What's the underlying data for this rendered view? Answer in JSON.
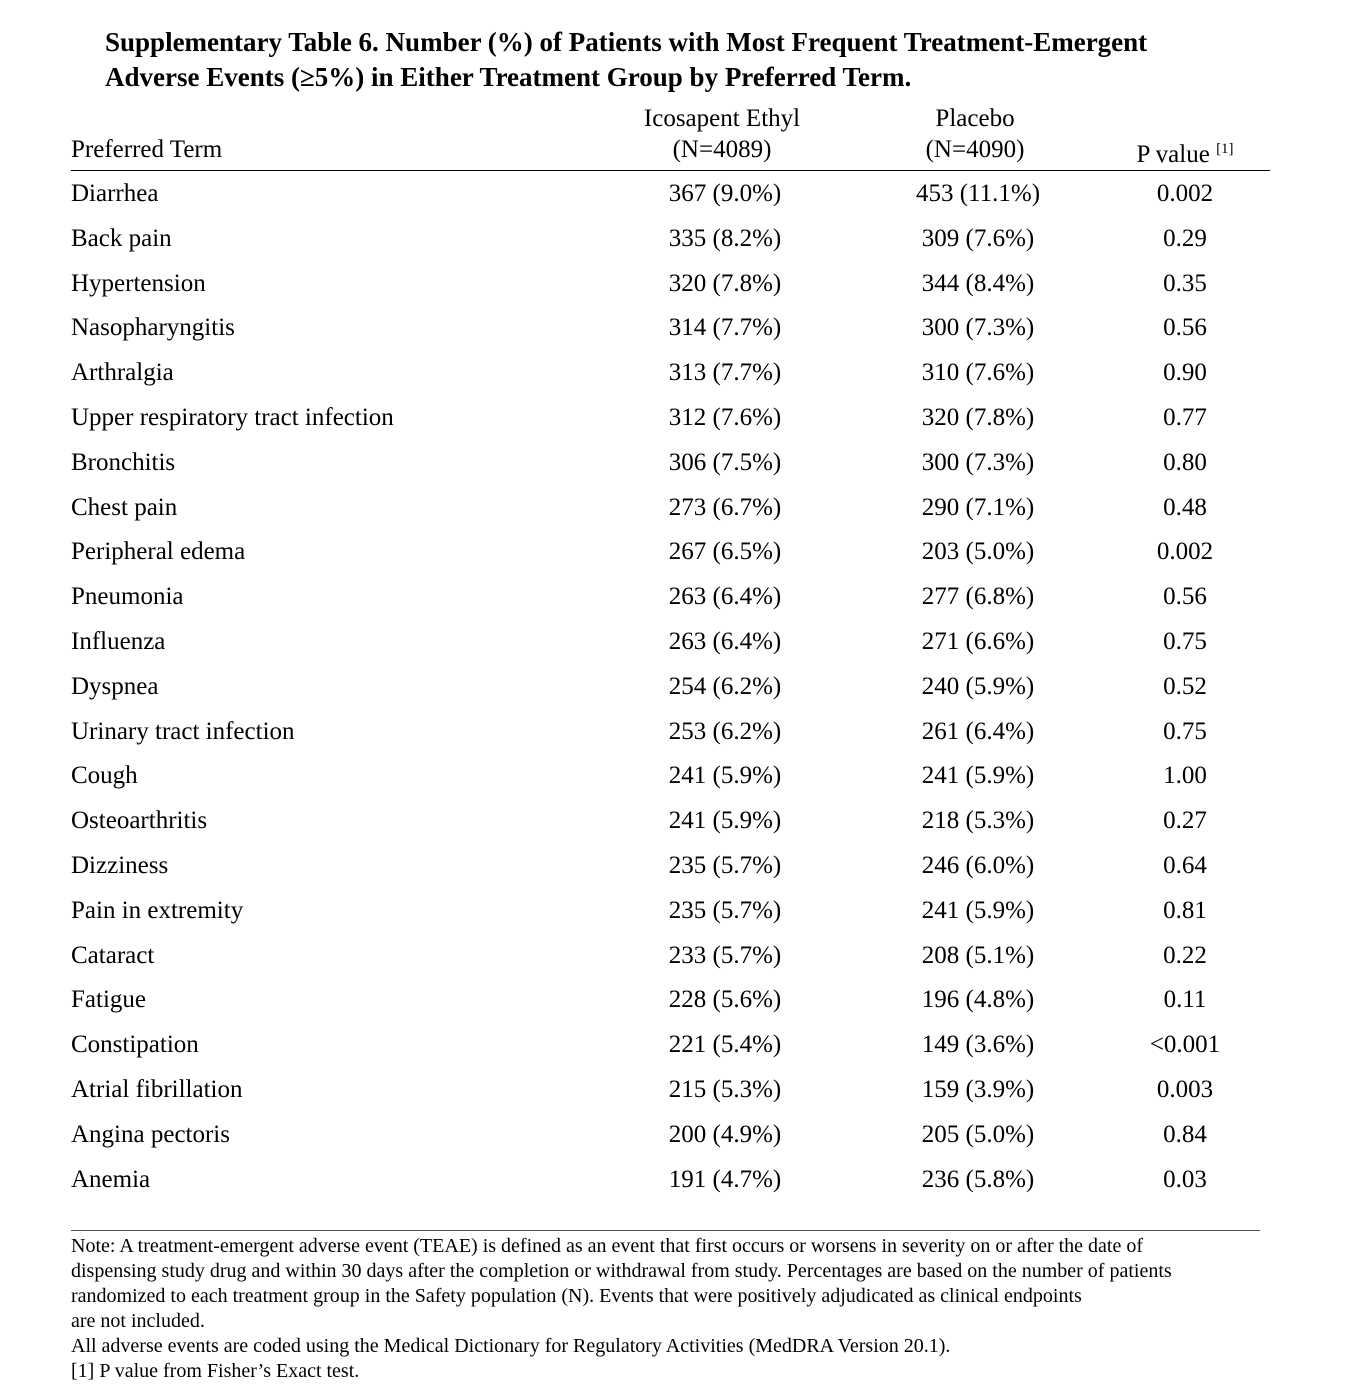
{
  "title": [
    "Supplementary Table 6. Number (%) of Patients with Most Frequent Treatment-Emergent",
    "Adverse Events (≥5%) in Either Treatment Group by Preferred Term."
  ],
  "header": {
    "term": "Preferred Term",
    "group1": "Icosapent Ethyl",
    "group1_n": "(N=4089)",
    "group2": "Placebo",
    "group2_n": "(N=4090)",
    "p_value": "P value",
    "p_value_ref": "[1]"
  },
  "rows": [
    [
      "Diarrhea",
      "367 (9.0%)",
      "453 (11.1%)",
      "0.002"
    ],
    [
      "Back pain",
      "335 (8.2%)",
      "309 (7.6%)",
      "0.29"
    ],
    [
      "Hypertension",
      "320 (7.8%)",
      "344 (8.4%)",
      "0.35"
    ],
    [
      "Nasopharyngitis",
      "314 (7.7%)",
      "300 (7.3%)",
      "0.56"
    ],
    [
      "Arthralgia",
      "313 (7.7%)",
      "310 (7.6%)",
      "0.90"
    ],
    [
      "Upper respiratory tract infection",
      "312 (7.6%)",
      "320 (7.8%)",
      "0.77"
    ],
    [
      "Bronchitis",
      "306 (7.5%)",
      "300 (7.3%)",
      "0.80"
    ],
    [
      "Chest pain",
      "273 (6.7%)",
      "290 (7.1%)",
      "0.48"
    ],
    [
      "Peripheral edema",
      "267 (6.5%)",
      "203 (5.0%)",
      "0.002"
    ],
    [
      "Pneumonia",
      "263 (6.4%)",
      "277 (6.8%)",
      "0.56"
    ],
    [
      "Influenza",
      "263 (6.4%)",
      "271 (6.6%)",
      "0.75"
    ],
    [
      "Dyspnea",
      "254 (6.2%)",
      "240 (5.9%)",
      "0.52"
    ],
    [
      "Urinary tract infection",
      "253 (6.2%)",
      "261 (6.4%)",
      "0.75"
    ],
    [
      "Cough",
      "241 (5.9%)",
      "241 (5.9%)",
      "1.00"
    ],
    [
      "Osteoarthritis",
      "241 (5.9%)",
      "218 (5.3%)",
      "0.27"
    ],
    [
      "Dizziness",
      "235 (5.7%)",
      "246 (6.0%)",
      "0.64"
    ],
    [
      "Pain in extremity",
      "235 (5.7%)",
      "241 (5.9%)",
      "0.81"
    ],
    [
      "Cataract",
      "233 (5.7%)",
      "208 (5.1%)",
      "0.22"
    ],
    [
      "Fatigue",
      "228 (5.6%)",
      "196 (4.8%)",
      "0.11"
    ],
    [
      "Constipation",
      "221 (5.4%)",
      "149 (3.6%)",
      "<0.001"
    ],
    [
      "Atrial fibrillation",
      "215 (5.3%)",
      "159 (3.9%)",
      "0.003"
    ],
    [
      "Angina pectoris",
      "200 (4.9%)",
      "205 (5.0%)",
      "0.84"
    ],
    [
      "Anemia",
      "191 (4.7%)",
      "236 (5.8%)",
      "0.03"
    ]
  ],
  "notes": [
    "Note: A treatment-emergent adverse event (TEAE) is defined as an event that first occurs or worsens in severity on or after the date of",
    "dispensing study drug and within 30 days after the completion or withdrawal from study. Percentages are based on the number of patients",
    "randomized to each treatment group in the Safety population (N). Events that were positively adjudicated as clinical endpoints",
    "are not included.",
    "All adverse events are coded using the Medical Dictionary for Regulatory Activities (MedDRA Version 20.1).",
    "[1] P value from Fisher’s Exact test."
  ]
}
